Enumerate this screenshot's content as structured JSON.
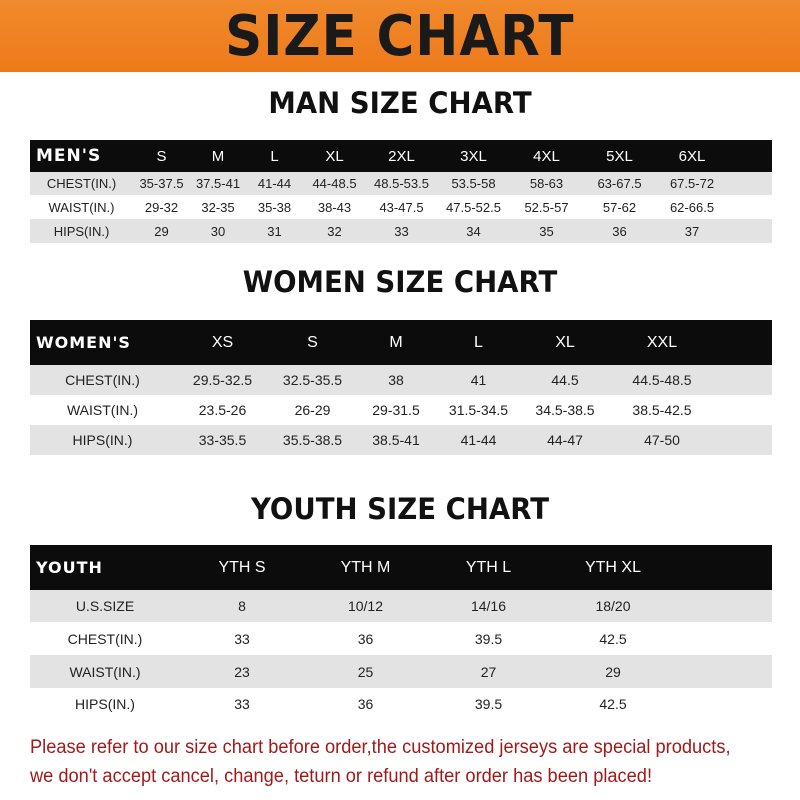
{
  "banner_title": "SIZE CHART",
  "men": {
    "title": "MAN SIZE CHART",
    "header": [
      "MEN'S",
      "S",
      "M",
      "L",
      "XL",
      "2XL",
      "3XL",
      "4XL",
      "5XL",
      "6XL"
    ],
    "rows": [
      [
        "CHEST(IN.)",
        "35-37.5",
        "37.5-41",
        "41-44",
        "44-48.5",
        "48.5-53.5",
        "53.5-58",
        "58-63",
        "63-67.5",
        "67.5-72"
      ],
      [
        "WAIST(IN.)",
        "29-32",
        "32-35",
        "35-38",
        "38-43",
        "43-47.5",
        "47.5-52.5",
        "52.5-57",
        "57-62",
        "62-66.5"
      ],
      [
        "HIPS(IN.)",
        "29",
        "30",
        "31",
        "32",
        "33",
        "34",
        "35",
        "36",
        "37"
      ]
    ]
  },
  "women": {
    "title": "WOMEN SIZE CHART",
    "header": [
      "WOMEN'S",
      "XS",
      "S",
      "M",
      "L",
      "XL",
      "XXL"
    ],
    "rows": [
      [
        "CHEST(IN.)",
        "29.5-32.5",
        "32.5-35.5",
        "38",
        "41",
        "44.5",
        "44.5-48.5"
      ],
      [
        "WAIST(IN.)",
        "23.5-26",
        "26-29",
        "29-31.5",
        "31.5-34.5",
        "34.5-38.5",
        "38.5-42.5"
      ],
      [
        "HIPS(IN.)",
        "33-35.5",
        "35.5-38.5",
        "38.5-41",
        "41-44",
        "44-47",
        "47-50"
      ]
    ]
  },
  "youth": {
    "title": "YOUTH SIZE CHART",
    "header": [
      "YOUTH",
      "YTH S",
      "YTH M",
      "YTH L",
      "YTH XL"
    ],
    "rows": [
      [
        "U.S.SIZE",
        "8",
        "10/12",
        "14/16",
        "18/20"
      ],
      [
        "CHEST(IN.)",
        "33",
        "36",
        "39.5",
        "42.5"
      ],
      [
        "WAIST(IN.)",
        "23",
        "25",
        "27",
        "29"
      ],
      [
        "HIPS(IN.)",
        "33",
        "36",
        "39.5",
        "42.5"
      ]
    ]
  },
  "note": [
    "Please refer to our size chart before order,the customized jerseys are special products,",
    "we don't accept cancel, change, teturn or refund after order has been placed!"
  ],
  "colors": {
    "banner": "#ef8224",
    "header": "#0c0c0c",
    "note": "#a11a1a",
    "row_shade": "#e3e3e3"
  }
}
